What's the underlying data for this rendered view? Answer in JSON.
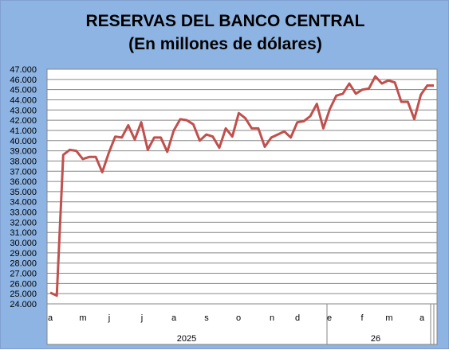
{
  "chart_data": {
    "type": "line",
    "title": "RESERVAS DEL BANCO CENTRAL",
    "subtitle": "(En millones de dólares)",
    "xlabel": "",
    "ylabel": "",
    "ylim": [
      24000,
      47000
    ],
    "y_ticks": [
      "24.000",
      "25.000",
      "26.000",
      "27.000",
      "28.000",
      "29.000",
      "30.000",
      "31.000",
      "32.000",
      "33.000",
      "34.000",
      "35.000",
      "36.000",
      "37.000",
      "38.000",
      "39.000",
      "40.000",
      "41.000",
      "42.000",
      "43.000",
      "44.000",
      "45.000",
      "46.000",
      "47.000"
    ],
    "month_labels": [
      "a",
      "m",
      "j",
      "j",
      "a",
      "s",
      "o",
      "n",
      "d",
      "e",
      "f",
      "m",
      "a"
    ],
    "year_labels": [
      "2025",
      "26"
    ],
    "grid": true,
    "line_color": "#c0504d",
    "series": [
      {
        "values": [
          25100,
          24800,
          38600,
          39100,
          39000,
          38200,
          38400,
          38400,
          36900,
          38800,
          40400,
          40300,
          41500,
          40100,
          41800,
          39100,
          40300,
          40300,
          38900,
          41000,
          42100,
          42000,
          41600,
          40000,
          40600,
          40400,
          39300,
          41200,
          40400,
          42700,
          42200,
          41200,
          41200,
          39400,
          40300,
          40600,
          40900,
          40300,
          41800,
          41900,
          42400,
          43600,
          41200,
          43100,
          44400,
          44600,
          45600,
          44600,
          45000,
          45100,
          46300,
          45600,
          45900,
          45700,
          43800,
          43800,
          42100,
          44500,
          45400,
          45400
        ]
      }
    ]
  }
}
